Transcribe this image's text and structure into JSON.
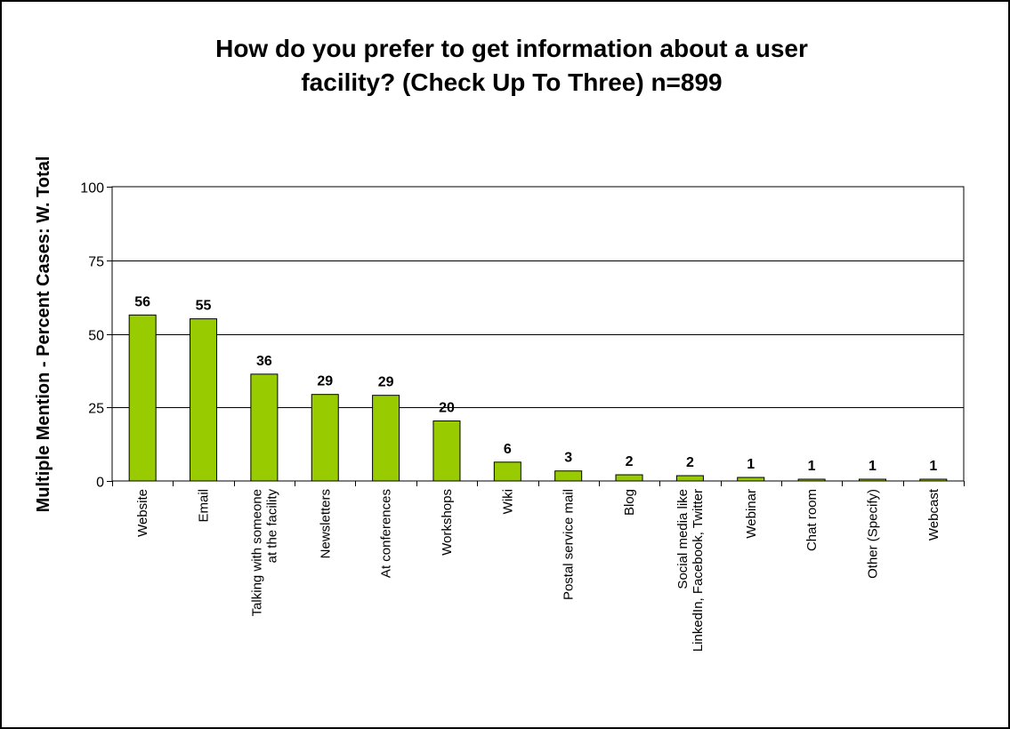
{
  "chart_data": {
    "type": "bar",
    "title_lines": [
      "How do you prefer to get information about a user",
      "facility?  (Check Up To Three)  n=899"
    ],
    "ylabel": "Multiple Mention - Percent Cases:  W. Total",
    "xlabel": "",
    "ylim": [
      0,
      100
    ],
    "yticks": [
      0,
      25,
      50,
      75,
      100
    ],
    "grid": true,
    "legend": "none",
    "bar_color": "#99CC00",
    "categories": [
      [
        "Website"
      ],
      [
        "Email"
      ],
      [
        "Talking with someone",
        "at the facility"
      ],
      [
        "Newsletters"
      ],
      [
        "At conferences"
      ],
      [
        "Workshops"
      ],
      [
        "Wiki"
      ],
      [
        "Postal service mail"
      ],
      [
        "Blog"
      ],
      [
        "Social media like",
        "LinkedIn, Facebook, Twitter"
      ],
      [
        "Webinar"
      ],
      [
        "Chat room"
      ],
      [
        "Other (Specify)"
      ],
      [
        "Webcast"
      ]
    ],
    "values": [
      56.4,
      55.1,
      36.3,
      29.4,
      29.1,
      20.4,
      6.4,
      3.4,
      2.1,
      1.8,
      1.2,
      0.6,
      0.6,
      0.6
    ],
    "data_labels": [
      "56",
      "55",
      "36",
      "29",
      "29",
      "20",
      "6",
      "3",
      "2",
      "2",
      "1",
      "1",
      "1",
      "1"
    ]
  }
}
